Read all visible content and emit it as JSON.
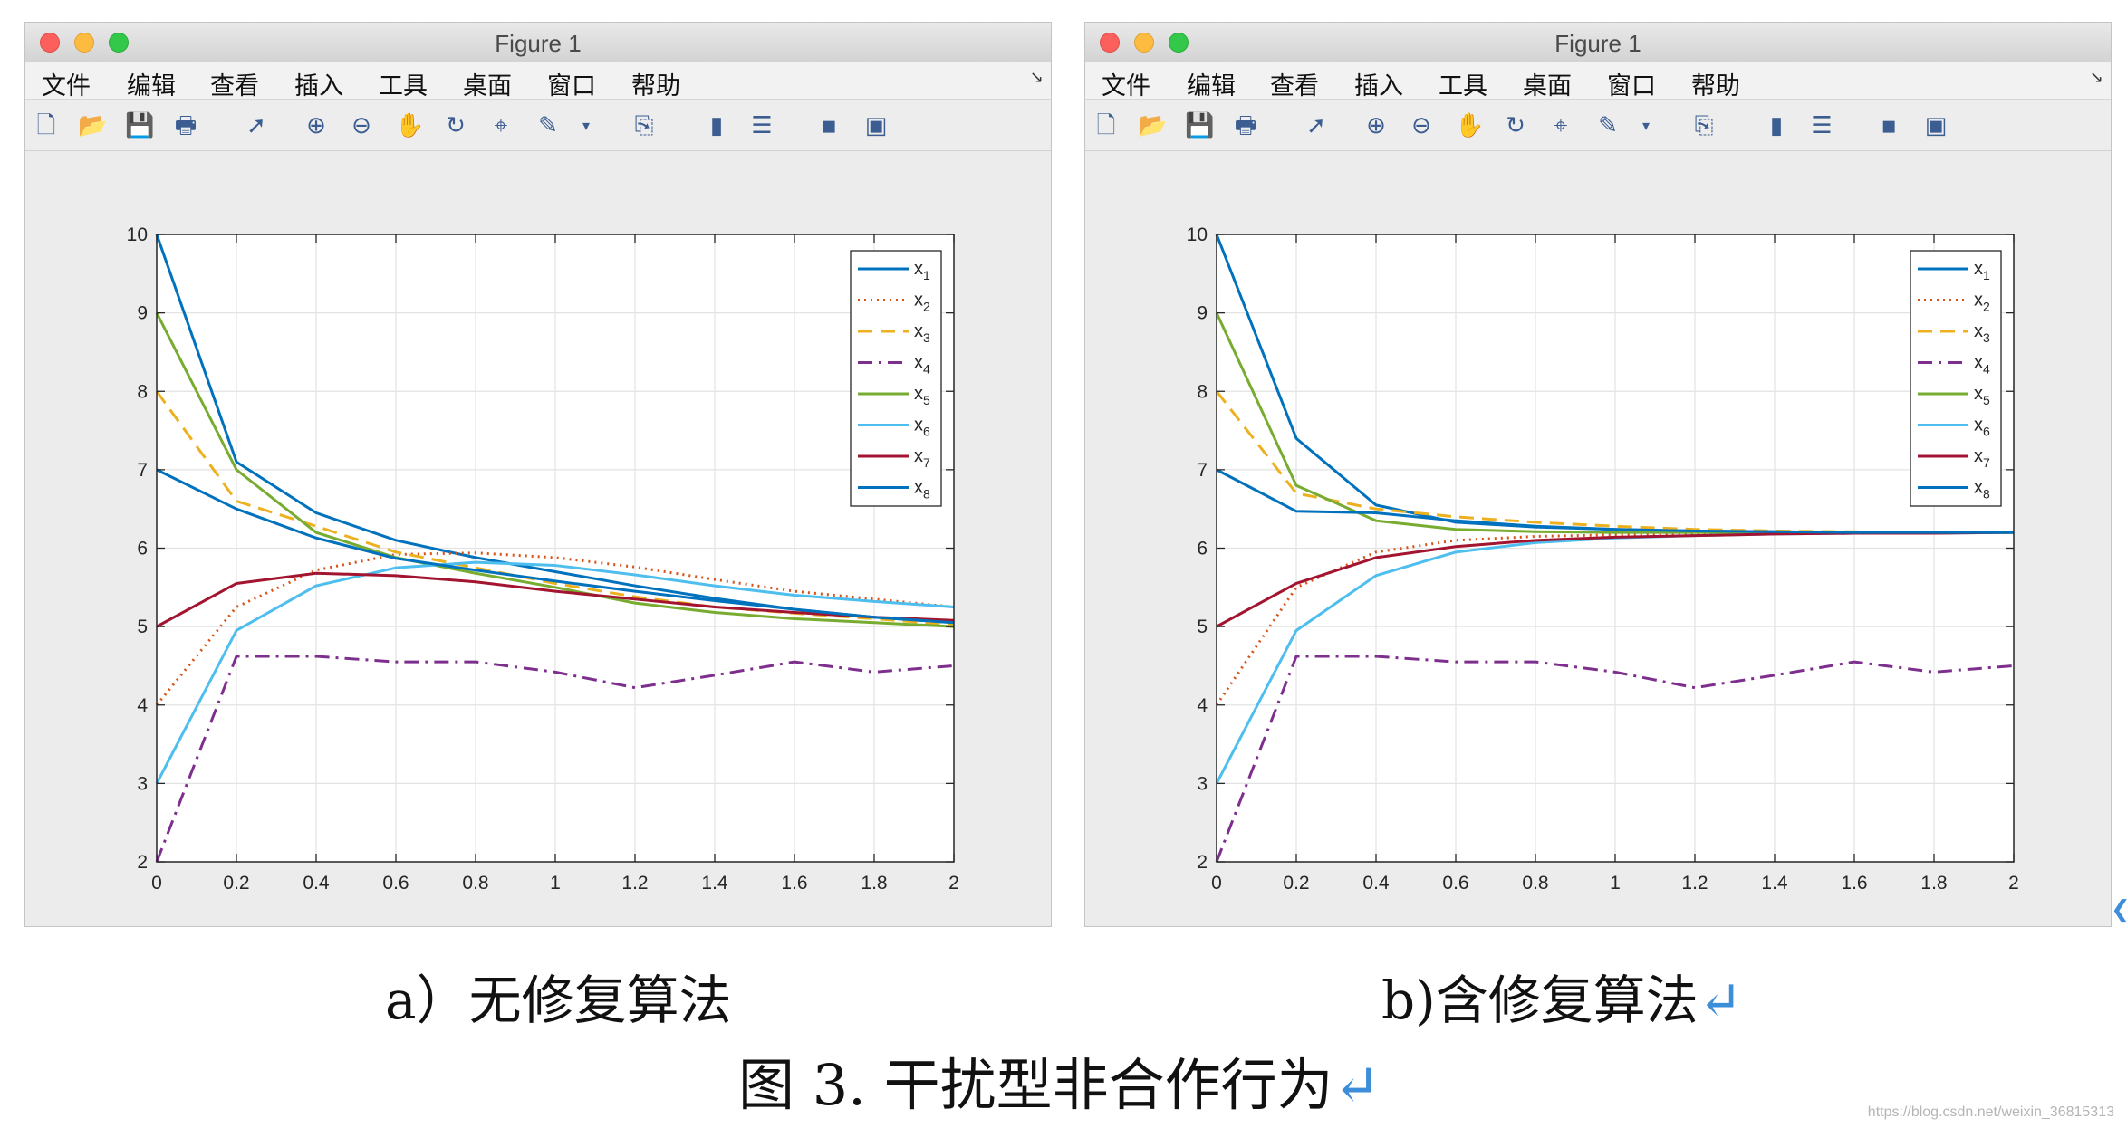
{
  "windows": [
    {
      "title": "Figure 1",
      "menu": [
        "文件",
        "编辑",
        "查看",
        "插入",
        "工具",
        "桌面",
        "窗口",
        "帮助"
      ]
    },
    {
      "title": "Figure 1",
      "menu": [
        "文件",
        "编辑",
        "查看",
        "插入",
        "工具",
        "桌面",
        "窗口",
        "帮助"
      ]
    }
  ],
  "toolbar_icons": [
    "new-file-icon",
    "open-folder-icon",
    "save-icon",
    "print-icon",
    "pointer-icon",
    "zoom-in-icon",
    "zoom-out-icon",
    "pan-hand-icon",
    "rotate-3d-icon",
    "data-cursor-icon",
    "brush-icon",
    "dropdown-arrow-icon",
    "link-plot-icon",
    "colorbar-icon",
    "legend-icon",
    "hide-plot-tools-icon",
    "show-plot-tools-icon"
  ],
  "captions": {
    "a": "a）无修复算法",
    "b": "b)含修复算法",
    "figure": "图 3.  干扰型非合作行为",
    "return_mark": "↵"
  },
  "watermark": "https://blog.csdn.net/weixin_36815313",
  "colors": {
    "x1": "#0072bd",
    "x2": "#d95319",
    "x3": "#edb120",
    "x4": "#7e2f8e",
    "x5": "#77ac30",
    "x6": "#4dbeee",
    "x7": "#a2142f",
    "x8": "#0072bd"
  },
  "chart_data": [
    {
      "type": "line",
      "xlim": [
        0,
        2
      ],
      "ylim": [
        2,
        10
      ],
      "xticks": [
        "0",
        "0.2",
        "0.4",
        "0.6",
        "0.8",
        "1",
        "1.2",
        "1.4",
        "1.6",
        "1.8",
        "2"
      ],
      "yticks": [
        "2",
        "3",
        "4",
        "5",
        "6",
        "7",
        "8",
        "9",
        "10"
      ],
      "grid": true,
      "legend_position": "top-right",
      "x": [
        0,
        0.2,
        0.4,
        0.6,
        0.8,
        1.0,
        1.2,
        1.4,
        1.6,
        1.8,
        2.0
      ],
      "series": [
        {
          "name": "x1",
          "style": "solid",
          "values": [
            10.0,
            7.1,
            6.45,
            6.1,
            5.88,
            5.7,
            5.52,
            5.36,
            5.22,
            5.12,
            5.05
          ]
        },
        {
          "name": "x2",
          "style": "dotted",
          "values": [
            4.0,
            5.25,
            5.72,
            5.92,
            5.94,
            5.88,
            5.76,
            5.6,
            5.45,
            5.35,
            5.25
          ]
        },
        {
          "name": "x3",
          "style": "dashed",
          "values": [
            8.0,
            6.6,
            6.28,
            5.95,
            5.75,
            5.55,
            5.38,
            5.25,
            5.17,
            5.1,
            5.02
          ]
        },
        {
          "name": "x4",
          "style": "dashdot",
          "values": [
            2.0,
            4.62,
            4.62,
            4.55,
            4.55,
            4.42,
            4.22,
            4.38,
            4.55,
            4.42,
            4.5
          ]
        },
        {
          "name": "x5",
          "style": "solid",
          "values": [
            9.0,
            7.0,
            6.2,
            5.88,
            5.68,
            5.5,
            5.3,
            5.18,
            5.1,
            5.05,
            5.0
          ]
        },
        {
          "name": "x6",
          "style": "solid",
          "values": [
            3.0,
            4.95,
            5.52,
            5.75,
            5.82,
            5.78,
            5.66,
            5.52,
            5.4,
            5.32,
            5.25
          ]
        },
        {
          "name": "x7",
          "style": "solid",
          "values": [
            5.0,
            5.55,
            5.68,
            5.65,
            5.57,
            5.45,
            5.35,
            5.25,
            5.18,
            5.12,
            5.08
          ]
        },
        {
          "name": "x8",
          "style": "solid",
          "values": [
            7.0,
            6.5,
            6.13,
            5.87,
            5.72,
            5.58,
            5.45,
            5.33,
            5.22,
            5.12,
            5.05
          ]
        }
      ]
    },
    {
      "type": "line",
      "xlim": [
        0,
        2
      ],
      "ylim": [
        2,
        10
      ],
      "xticks": [
        "0",
        "0.2",
        "0.4",
        "0.6",
        "0.8",
        "1",
        "1.2",
        "1.4",
        "1.6",
        "1.8",
        "2"
      ],
      "yticks": [
        "2",
        "3",
        "4",
        "5",
        "6",
        "7",
        "8",
        "9",
        "10"
      ],
      "grid": true,
      "legend_position": "top-right",
      "x": [
        0,
        0.2,
        0.4,
        0.6,
        0.8,
        1.0,
        1.2,
        1.4,
        1.6,
        1.8,
        2.0
      ],
      "series": [
        {
          "name": "x1",
          "style": "solid",
          "values": [
            10.0,
            7.4,
            6.55,
            6.33,
            6.27,
            6.24,
            6.22,
            6.21,
            6.2,
            6.2,
            6.2
          ]
        },
        {
          "name": "x2",
          "style": "dotted",
          "values": [
            4.0,
            5.5,
            5.95,
            6.1,
            6.15,
            6.17,
            6.18,
            6.19,
            6.19,
            6.2,
            6.2
          ]
        },
        {
          "name": "x3",
          "style": "dashed",
          "values": [
            8.0,
            6.7,
            6.5,
            6.4,
            6.33,
            6.28,
            6.24,
            6.22,
            6.21,
            6.2,
            6.2
          ]
        },
        {
          "name": "x4",
          "style": "dashdot",
          "values": [
            2.0,
            4.62,
            4.62,
            4.55,
            4.55,
            4.42,
            4.22,
            4.38,
            4.55,
            4.42,
            4.5
          ]
        },
        {
          "name": "x5",
          "style": "solid",
          "values": [
            9.0,
            6.8,
            6.35,
            6.24,
            6.21,
            6.2,
            6.2,
            6.2,
            6.2,
            6.2,
            6.2
          ]
        },
        {
          "name": "x6",
          "style": "solid",
          "values": [
            3.0,
            4.95,
            5.65,
            5.95,
            6.07,
            6.13,
            6.16,
            6.18,
            6.19,
            6.19,
            6.2
          ]
        },
        {
          "name": "x7",
          "style": "solid",
          "values": [
            5.0,
            5.55,
            5.88,
            6.02,
            6.1,
            6.14,
            6.16,
            6.18,
            6.19,
            6.19,
            6.2
          ]
        },
        {
          "name": "x8",
          "style": "solid",
          "values": [
            7.0,
            6.47,
            6.45,
            6.35,
            6.28,
            6.24,
            6.22,
            6.21,
            6.2,
            6.2,
            6.2
          ]
        }
      ]
    }
  ]
}
